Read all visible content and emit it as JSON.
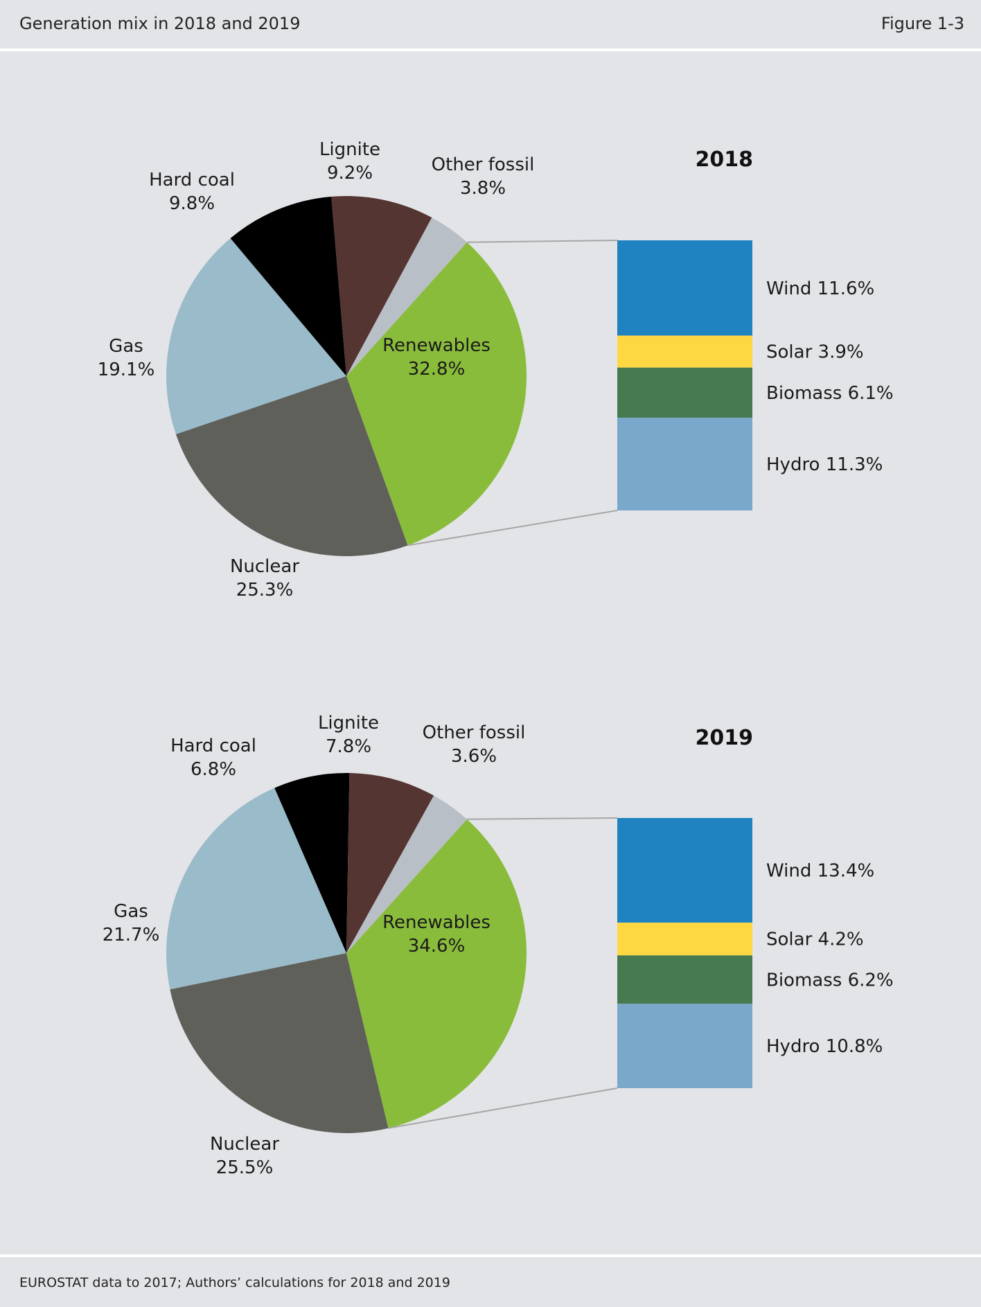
{
  "header": {
    "title": "Generation mix in 2018 and 2019",
    "figure": "Figure 1-3"
  },
  "footer": {
    "source": "EUROSTAT data to 2017; Authors’ calculations for 2018 and 2019"
  },
  "colors": {
    "hard_coal": "#000000",
    "lignite": "#543532",
    "other_fossil": "#b9bfc6",
    "renewables": "#8abc3c",
    "nuclear": "#5f605a",
    "gas": "#9abbca",
    "wind": "#1f83c2",
    "solar": "#fdd843",
    "biomass": "#477a4f",
    "hydro": "#7aa8ca",
    "connector": "#a6a6a6"
  },
  "chart_data": [
    {
      "type": "pie",
      "year": "2018",
      "slices": [
        {
          "key": "renewables",
          "name": "Renewables",
          "value": 32.8,
          "label": "32.8%"
        },
        {
          "key": "nuclear",
          "name": "Nuclear",
          "value": 25.3,
          "label": "25.3%"
        },
        {
          "key": "gas",
          "name": "Gas",
          "value": 19.1,
          "label": "19.1%"
        },
        {
          "key": "hard_coal",
          "name": "Hard coal",
          "value": 9.8,
          "label": "9.8%"
        },
        {
          "key": "lignite",
          "name": "Lignite",
          "value": 9.2,
          "label": "9.2%"
        },
        {
          "key": "other_fossil",
          "name": "Other fossil",
          "value": 3.8,
          "label": "3.8%"
        }
      ],
      "breakdown": [
        {
          "key": "wind",
          "label": "Wind 11.6%",
          "value": 11.6
        },
        {
          "key": "solar",
          "label": "Solar 3.9%",
          "value": 3.9
        },
        {
          "key": "biomass",
          "label": "Biomass 6.1%",
          "value": 6.1
        },
        {
          "key": "hydro",
          "label": "Hydro 11.3%",
          "value": 11.3
        }
      ]
    },
    {
      "type": "pie",
      "year": "2019",
      "slices": [
        {
          "key": "renewables",
          "name": "Renewables",
          "value": 34.6,
          "label": "34.6%"
        },
        {
          "key": "nuclear",
          "name": "Nuclear",
          "value": 25.5,
          "label": "25.5%"
        },
        {
          "key": "gas",
          "name": "Gas",
          "value": 21.7,
          "label": "21.7%"
        },
        {
          "key": "hard_coal",
          "name": "Hard coal",
          "value": 6.8,
          "label": "6.8%"
        },
        {
          "key": "lignite",
          "name": "Lignite",
          "value": 7.8,
          "label": "7.8%"
        },
        {
          "key": "other_fossil",
          "name": "Other fossil",
          "value": 3.6,
          "label": "3.6%"
        }
      ],
      "breakdown": [
        {
          "key": "wind",
          "label": "Wind 13.4%",
          "value": 13.4
        },
        {
          "key": "solar",
          "label": "Solar 4.2%",
          "value": 4.2
        },
        {
          "key": "biomass",
          "label": "Biomass 6.2%",
          "value": 6.2
        },
        {
          "key": "hydro",
          "label": "Hydro 10.8%",
          "value": 10.8
        }
      ]
    }
  ]
}
